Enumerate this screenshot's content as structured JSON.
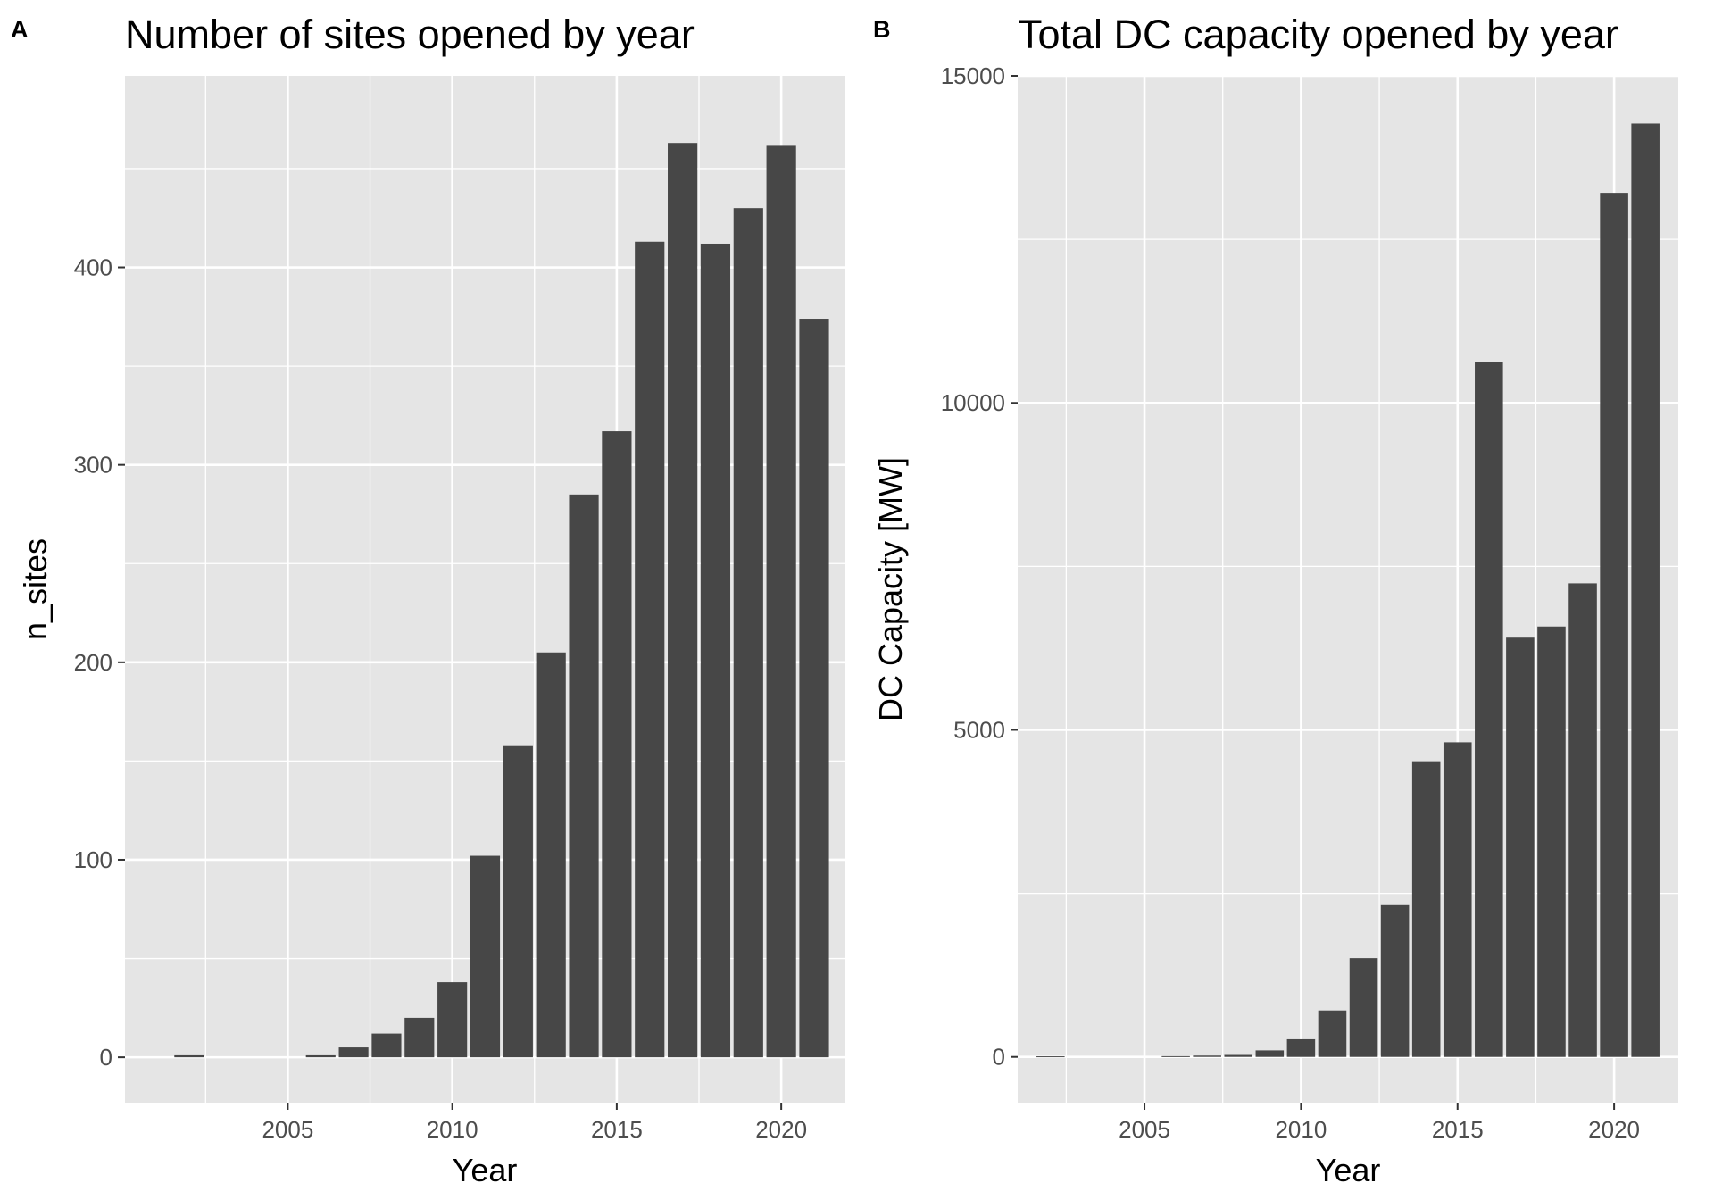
{
  "panels": [
    {
      "letter": "A",
      "title": "Number of sites opened by year",
      "xlabel": "Year",
      "ylabel": "n_sites"
    },
    {
      "letter": "B",
      "title": "Total DC capacity opened by year",
      "xlabel": "Year",
      "ylabel": "DC Capacity [MW]"
    }
  ],
  "colors": {
    "panel_background": "#e5e5e5",
    "grid": "#ffffff",
    "bar": "#474747",
    "tick_text": "#4d4d4d",
    "tick_mark": "#333333"
  },
  "chart_data": [
    {
      "type": "bar",
      "title": "Number of sites opened by year",
      "xlabel": "Year",
      "ylabel": "n_sites",
      "x": [
        2002,
        2006,
        2007,
        2008,
        2009,
        2010,
        2011,
        2012,
        2013,
        2014,
        2015,
        2016,
        2017,
        2018,
        2019,
        2020,
        2021
      ],
      "values": [
        1,
        1,
        5,
        12,
        20,
        38,
        102,
        158,
        205,
        285,
        317,
        413,
        463,
        412,
        430,
        462,
        374
      ],
      "xlim": [
        2000.05,
        2021.95
      ],
      "ylim": [
        -23,
        497
      ],
      "xticks": [
        2005,
        2010,
        2015,
        2020
      ],
      "yticks": [
        0,
        100,
        200,
        300,
        400
      ],
      "grid": true,
      "legend": "none"
    },
    {
      "type": "bar",
      "title": "Total DC capacity opened by year",
      "xlabel": "Year",
      "ylabel": "DC Capacity [MW]",
      "x": [
        2002,
        2006,
        2007,
        2008,
        2009,
        2010,
        2011,
        2012,
        2013,
        2014,
        2015,
        2016,
        2017,
        2018,
        2019,
        2020,
        2021
      ],
      "values": [
        2,
        5,
        20,
        30,
        100,
        270,
        710,
        1510,
        2320,
        4520,
        4810,
        10630,
        6410,
        6580,
        7240,
        13210,
        14270
      ],
      "xlim": [
        2000.95,
        2022.05
      ],
      "ylim": [
        -700,
        15000
      ],
      "xticks": [
        2005,
        2010,
        2015,
        2020
      ],
      "yticks": [
        0,
        5000,
        10000,
        15000
      ],
      "grid": true,
      "legend": "none"
    }
  ]
}
